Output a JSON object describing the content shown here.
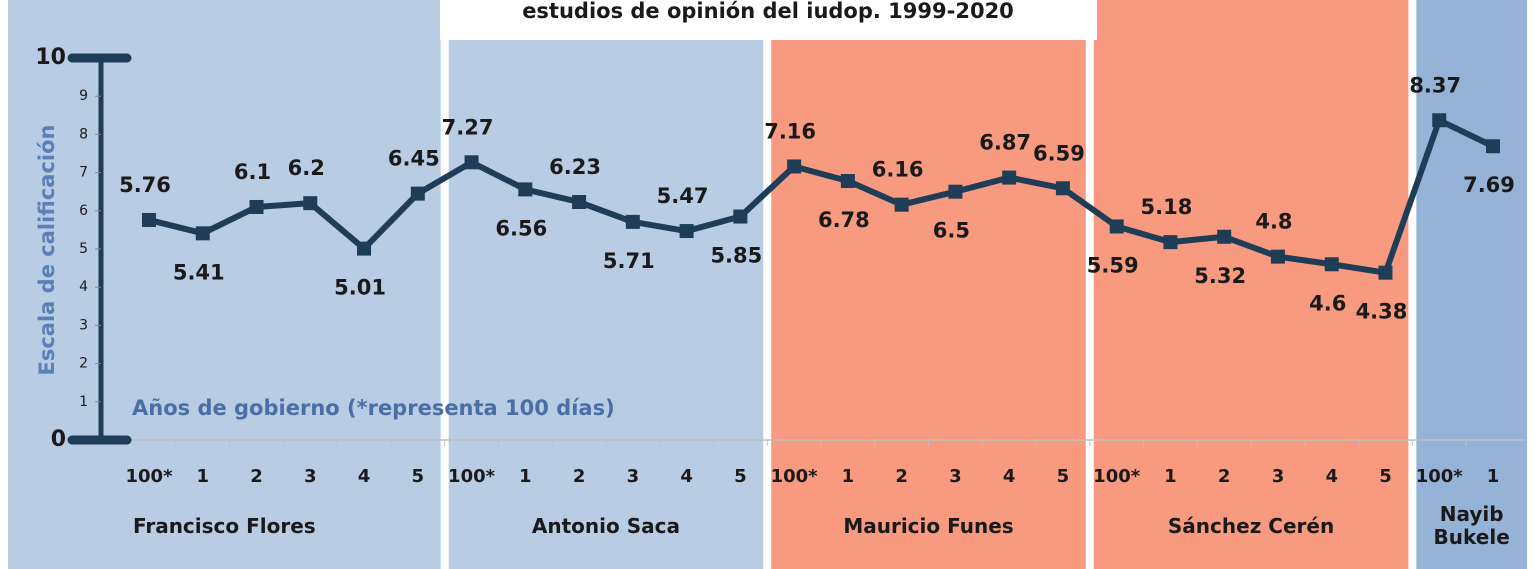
{
  "chart_data": {
    "type": "line",
    "title": "estudios de opinión del iudop. 1999-2020",
    "y_label": "Escala de calificación",
    "annotation": "Años de gobierno (*representa 100 días)",
    "ylim": [
      0,
      10
    ],
    "yticks": [
      0,
      1,
      2,
      3,
      4,
      5,
      6,
      7,
      8,
      9,
      10
    ],
    "line_color": "#1f3d57",
    "groups": [
      {
        "name": "Francisco Flores",
        "color": "#b8cce4",
        "categories": [
          "100*",
          "1",
          "2",
          "3",
          "4",
          "5"
        ],
        "values": [
          5.76,
          5.41,
          6.1,
          6.2,
          5.01,
          6.45
        ]
      },
      {
        "name": "Antonio Saca",
        "color": "#b8cce4",
        "categories": [
          "100*",
          "1",
          "2",
          "3",
          "4",
          "5"
        ],
        "values": [
          7.27,
          6.56,
          6.23,
          5.71,
          5.47,
          5.85
        ]
      },
      {
        "name": "Mauricio Funes",
        "color": "#f79a80",
        "categories": [
          "100*",
          "1",
          "2",
          "3",
          "4",
          "5"
        ],
        "values": [
          7.16,
          6.78,
          6.16,
          6.5,
          6.87,
          6.59
        ]
      },
      {
        "name": "Sánchez Cerén",
        "color": "#f79a80",
        "categories": [
          "100*",
          "1",
          "2",
          "3",
          "4",
          "5"
        ],
        "values": [
          5.59,
          5.18,
          5.32,
          4.8,
          4.6,
          4.38
        ]
      },
      {
        "name": "Nayib Bukele",
        "color": "#95b3d7",
        "categories": [
          "100*",
          "1"
        ],
        "values": [
          8.37,
          7.69
        ]
      }
    ]
  }
}
